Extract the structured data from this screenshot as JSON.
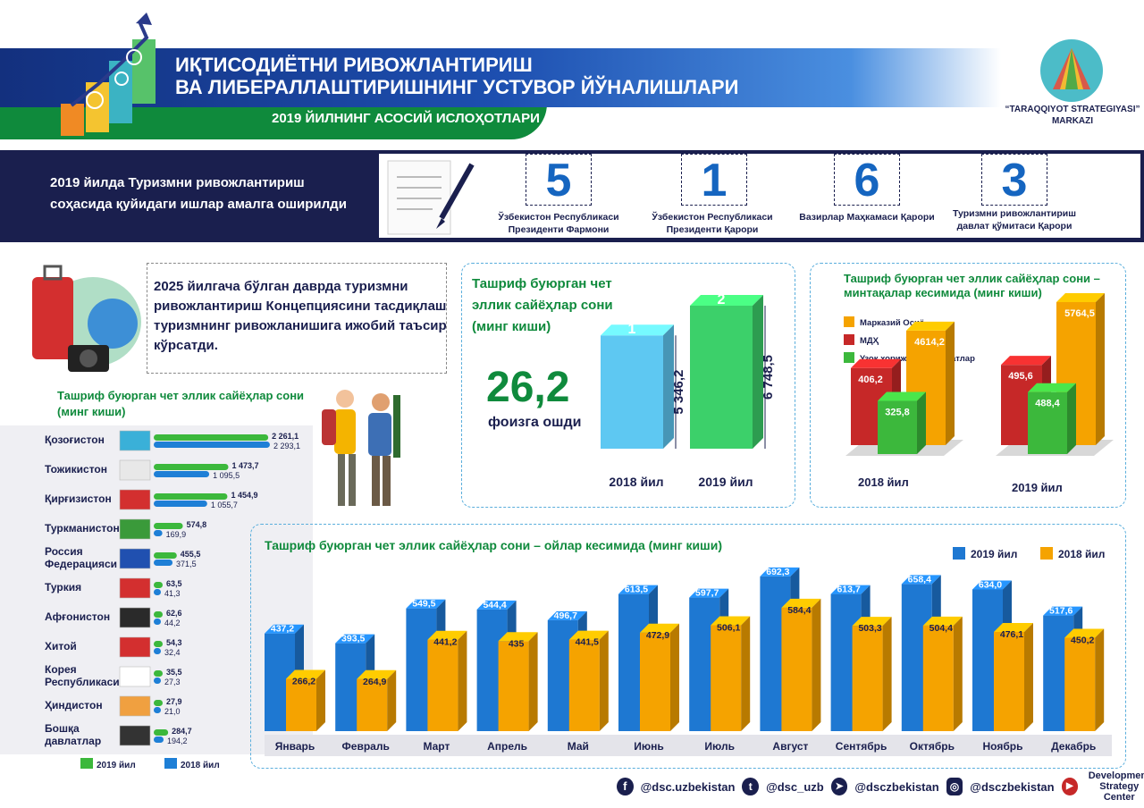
{
  "header": {
    "title": "ИҚТИСОДИЁТНИ РИВОЖЛАНТИРИШ\nВА ЛИБЕРАЛЛАШТИРИШНИНГ УСТУВОР ЙЎНАЛИШЛАРИ",
    "subtitle": "2019 ЙИЛНИНГ АСОСИЙ ИСЛОҲОТЛАРИ",
    "logo_line1": "“TARAQQIYOT STRATEGIYASI”",
    "logo_line2": "MARKAZI"
  },
  "banner": {
    "text": "2019 йилда Туризмни ривожлантириш соҳасида қуйидаги ишлар амалга оширилди",
    "stats": [
      {
        "value": "5",
        "label": "Ўзбекистон Республикаси Президенти Фармони"
      },
      {
        "value": "1",
        "label": "Ўзбекистон Республикаси Президенти Қарори"
      },
      {
        "value": "6",
        "label": "Вазирлар Маҳкамаси Қарори"
      },
      {
        "value": "3",
        "label": "Туризмни ривожлантириш давлат қўмитаси Қарори"
      }
    ]
  },
  "concept": {
    "text": "2025 йилгача бўлган даврда туризмни ривожлантириш Концепциясини тасдиқлаш туризмнинг ривожланишига ижобий таъсир кўрсатди."
  },
  "colors": {
    "navy": "#1a1f4e",
    "green": "#0f8a3c",
    "blue2019": "#1565c0",
    "orange2018": "#f5a300",
    "bar_green": "#3cb83c",
    "bar_blue": "#1e7fd6"
  },
  "chart_data": [
    {
      "type": "bar",
      "title": "Ташриф буюрган чет эллик сайёҳлар сони (минг киши)",
      "categories": [
        "Қозоғистон",
        "Тожикистон",
        "Қирғизистон",
        "Туркманистон",
        "Россия Федерацияси",
        "Туркия",
        "Афғонистон",
        "Хитой",
        "Корея Республикаси",
        "Ҳиндистон",
        "Бошқа давлатлар"
      ],
      "series": [
        {
          "name": "2019 йил",
          "values": [
            2261.1,
            1473.7,
            1454.9,
            574.8,
            455.5,
            63.5,
            62.6,
            54.3,
            35.5,
            27.9,
            284.7
          ],
          "labels": [
            "2 261,1",
            "1 473,7",
            "1 454,9",
            "574,8",
            "455,5",
            "63,5",
            "62,6",
            "54,3",
            "35,5",
            "27,9",
            "284,7"
          ]
        },
        {
          "name": "2018 йил",
          "values": [
            2293.1,
            1095.5,
            1055.7,
            169.9,
            371.5,
            41.3,
            44.2,
            32.4,
            27.3,
            21.0,
            194.2
          ],
          "labels": [
            "2 293,1",
            "1 095,5",
            "1 055,7",
            "169,9",
            "371,5",
            "41,3",
            "44,2",
            "32,4",
            "27,3",
            "21,0",
            "194,2"
          ]
        }
      ],
      "legend": [
        "2019 йил",
        "2018 йил"
      ]
    },
    {
      "type": "bar",
      "title": "Ташриф буюрган чет эллик сайёҳлар сони (минг киши)",
      "categories": [
        "2018 йил",
        "2019 йил"
      ],
      "values": [
        5346.2,
        6748.5
      ],
      "labels": [
        "5 346,2",
        "6 748,5"
      ],
      "cube_marks": [
        "1",
        "2"
      ],
      "growth_value": "26,2",
      "growth_label": "фоизга ошди"
    },
    {
      "type": "bar",
      "title": "Ташриф буюрган чет эллик сайёҳлар сони – минтақалар кесимида (минг киши)",
      "categories": [
        "2018 йил",
        "2019 йил"
      ],
      "series": [
        {
          "name": "Марказий Осиё",
          "values": [
            4614.2,
            5764.5
          ],
          "labels": [
            "4614,2",
            "5764,5"
          ]
        },
        {
          "name": "МДҲ",
          "values": [
            406.2,
            495.6
          ],
          "labels": [
            "406,2",
            "495,6"
          ]
        },
        {
          "name": "Узоқ хорижий мамлакатлар",
          "values": [
            325.8,
            488.4
          ],
          "labels": [
            "325,8",
            "488,4"
          ]
        }
      ]
    },
    {
      "type": "bar",
      "title": "Ташриф буюрган чет эллик сайёҳлар сони – ойлар кесимида (минг киши)",
      "categories": [
        "Январь",
        "Февраль",
        "Март",
        "Апрель",
        "Май",
        "Июнь",
        "Июль",
        "Август",
        "Сентябрь",
        "Октябрь",
        "Ноябрь",
        "Декабрь"
      ],
      "series": [
        {
          "name": "2019 йил",
          "values": [
            437.2,
            393.5,
            549.5,
            544.4,
            496.7,
            613.5,
            597.7,
            692.3,
            613.7,
            658.4,
            634.0,
            517.6
          ],
          "labels": [
            "437,2",
            "393,5",
            "549,5",
            "544,4",
            "496,7",
            "613,5",
            "597,7",
            "692,3",
            "613,7",
            "658,4",
            "634,0",
            "517,6"
          ]
        },
        {
          "name": "2018 йил",
          "values": [
            266.2,
            264.9,
            441.2,
            435,
            441.5,
            472.9,
            506.1,
            584.4,
            503.3,
            504.4,
            476.1,
            450.2
          ],
          "labels": [
            "266,2",
            "264,9",
            "441,2",
            "435",
            "441,5",
            "472,9",
            "506,1",
            "584,4",
            "503,3",
            "504,4",
            "476,1",
            "450,2"
          ]
        }
      ],
      "legend": [
        "2019 йил",
        "2018 йил"
      ]
    }
  ],
  "footer": {
    "facebook": "@dsc.uzbekistan",
    "twitter": "@dsc_uzb",
    "telegram": "@dsczbekistan",
    "instagram": "@dsczbekistan",
    "youtube_line1": "Development",
    "youtube_line2": "Strategy Center"
  }
}
